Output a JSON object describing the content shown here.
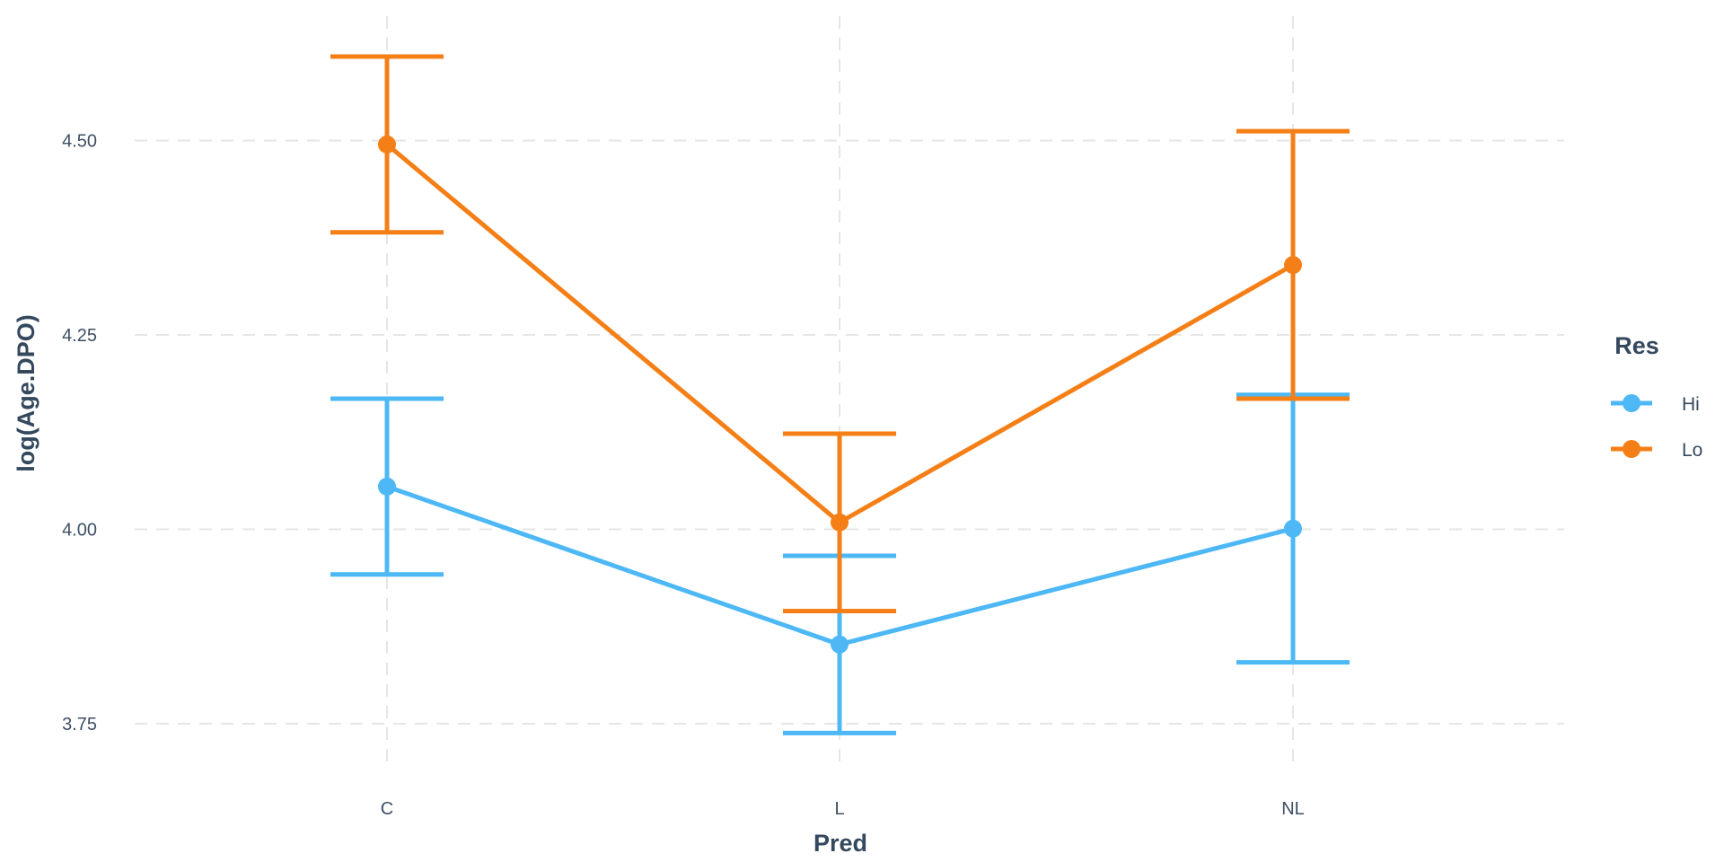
{
  "chart_data": {
    "type": "line",
    "title": "",
    "xlabel": "Pred",
    "ylabel": "log(Age.DPO)",
    "categories": [
      "C",
      "L",
      "NL"
    ],
    "yticks": [
      "3.75",
      "4.00",
      "4.25",
      "4.50"
    ],
    "ylim": [
      3.69,
      4.66
    ],
    "grid": true,
    "legend": {
      "title": "Res",
      "position": "right"
    },
    "series": [
      {
        "name": "Hi",
        "color": "#4db8f5",
        "values": [
          4.055,
          3.852,
          4.001
        ],
        "lower": [
          3.942,
          3.738,
          3.829
        ],
        "upper": [
          4.168,
          3.966,
          4.173
        ]
      },
      {
        "name": "Lo",
        "color": "#f57f17",
        "values": [
          4.495,
          4.009,
          4.34
        ],
        "lower": [
          4.382,
          3.895,
          4.168
        ],
        "upper": [
          4.608,
          4.123,
          4.512
        ]
      }
    ]
  }
}
